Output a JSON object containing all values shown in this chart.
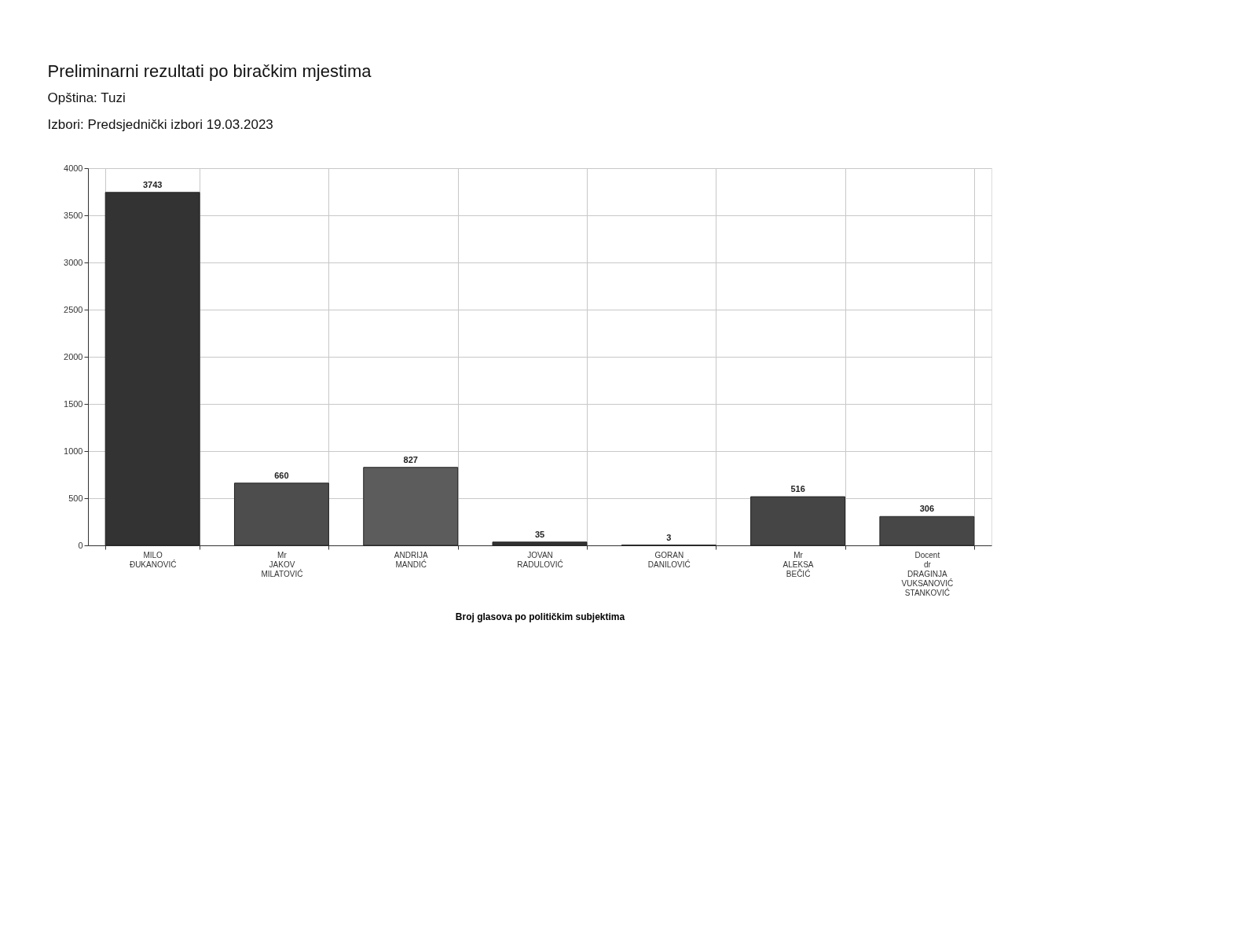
{
  "chart_data": {
    "type": "bar",
    "title": "Preliminarni rezultati po biračkim mjestima",
    "subtitle": "Opština: Tuzi\nIzbori: Predsjednički izbori 19.03.2023",
    "xlabel": "Broj glasova po političkim subjektima",
    "categories": [
      "MILO\nĐUKANOVIĆ",
      "Mr\nJAKOV\nMILATOVIĆ",
      "ANDRIJA\nMANDIĆ",
      "JOVAN\nRADULOVIĆ",
      "GORAN\nDANILOVIĆ",
      "Mr\nALEKSA\nBEČIĆ",
      "Docent\ndr\nDRAGINJA\nVUKSANOVIĆ\nSTANKOVIĆ"
    ],
    "values": [
      3743,
      660,
      827,
      35,
      3,
      516,
      306
    ],
    "colors": [
      "#333333",
      "#4d4d4d",
      "#5c5c5c",
      "#333333",
      "#333333",
      "#454545",
      "#474747"
    ],
    "ylim": [
      0,
      4000
    ],
    "yticks": [
      0,
      500,
      1000,
      1500,
      2000,
      2500,
      3000,
      3500,
      4000
    ],
    "grid": true,
    "data_labels": true,
    "legend": false
  }
}
